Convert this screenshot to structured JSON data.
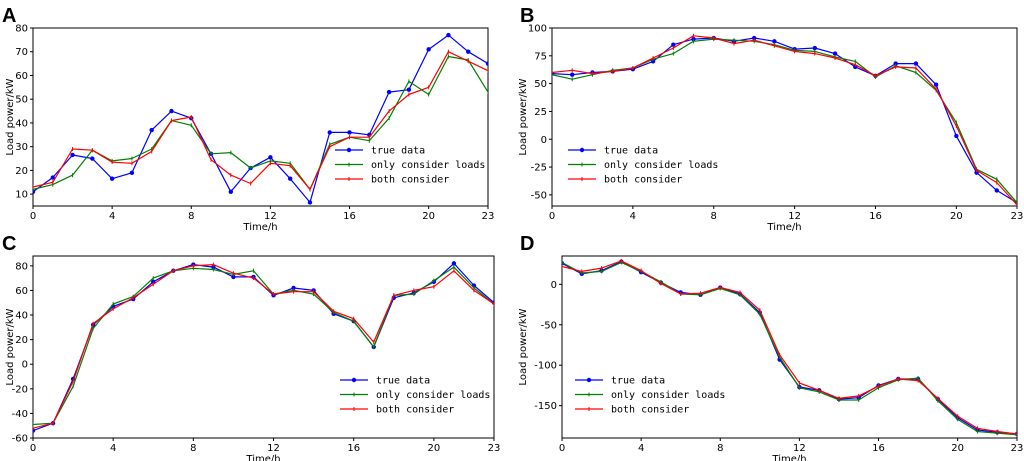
{
  "colors": {
    "true_data": "#0000ff",
    "only_loads": "#008000",
    "both": "#ff0000"
  },
  "chart_data": [
    {
      "panel": "A",
      "type": "line",
      "xlabel": "Time/h",
      "ylabel": "Load power/kW",
      "xlim": [
        0,
        23
      ],
      "ylim": [
        5,
        80
      ],
      "xticks": [
        0,
        4,
        8,
        12,
        16,
        20,
        23
      ],
      "yticks": [
        10,
        20,
        30,
        40,
        50,
        60,
        70,
        80
      ],
      "legend_position": "center-right",
      "x": [
        0,
        1,
        2,
        3,
        4,
        5,
        6,
        7,
        8,
        9,
        10,
        11,
        12,
        13,
        14,
        15,
        16,
        17,
        18,
        19,
        20,
        21,
        22,
        23
      ],
      "series": [
        {
          "name": "true data",
          "key": "true_data",
          "marker": "dot",
          "values": [
            11,
            17,
            26.5,
            25,
            16.5,
            19,
            37,
            45,
            42,
            27,
            11,
            21,
            25.5,
            16.5,
            6.5,
            36,
            36,
            35,
            53,
            54,
            71,
            77,
            70,
            65
          ]
        },
        {
          "name": "only consider loads",
          "key": "only_loads",
          "marker": "tick",
          "values": [
            12,
            14,
            18,
            28.5,
            24,
            25,
            29,
            41,
            39,
            27,
            27.5,
            21,
            24,
            23,
            12,
            31,
            34,
            32.5,
            42,
            57.5,
            52,
            68,
            66.5,
            53
          ]
        },
        {
          "name": "both consider",
          "key": "both",
          "marker": "tick",
          "values": [
            13,
            15,
            29,
            28.5,
            23.5,
            23,
            28,
            41,
            42.5,
            24.5,
            18,
            14.5,
            23,
            22,
            12,
            30,
            34,
            34,
            45,
            52,
            55,
            70,
            66,
            62
          ]
        }
      ]
    },
    {
      "panel": "B",
      "type": "line",
      "xlabel": "Time/h",
      "ylabel": "Load power/kW",
      "xlim": [
        0,
        23
      ],
      "ylim": [
        -60,
        100
      ],
      "xticks": [
        0,
        4,
        8,
        12,
        16,
        20,
        23
      ],
      "yticks": [
        -50,
        -25,
        0,
        25,
        50,
        75,
        100
      ],
      "legend_position": "lower-left",
      "x": [
        0,
        1,
        2,
        3,
        4,
        5,
        6,
        7,
        8,
        9,
        10,
        11,
        12,
        13,
        14,
        15,
        16,
        17,
        18,
        19,
        20,
        21,
        22,
        23
      ],
      "series": [
        {
          "name": "true data",
          "key": "true_data",
          "marker": "dot",
          "values": [
            59,
            58,
            60,
            61,
            63,
            70,
            85,
            90,
            91,
            88,
            91,
            88,
            81,
            82,
            77,
            65,
            57,
            68,
            68,
            49,
            3,
            -30,
            -46,
            -57
          ]
        },
        {
          "name": "only consider loads",
          "key": "only_loads",
          "marker": "tick",
          "values": [
            58,
            54,
            58,
            62,
            64,
            72,
            77,
            88,
            90,
            89,
            88,
            85,
            80,
            79,
            74,
            70,
            56,
            66,
            60,
            44,
            15,
            -27,
            -36,
            -57
          ]
        },
        {
          "name": "both consider",
          "key": "both",
          "marker": "tick",
          "values": [
            60,
            62,
            59,
            61,
            64,
            73,
            82,
            93,
            91,
            86,
            89,
            84,
            79,
            77,
            73,
            67,
            57,
            65,
            64,
            45,
            12,
            -28,
            -39,
            -59
          ]
        }
      ]
    },
    {
      "panel": "C",
      "type": "line",
      "xlabel": "Time/h",
      "ylabel": "Load power/kW",
      "xlim": [
        0,
        23
      ],
      "ylim": [
        -60,
        88
      ],
      "xticks": [
        0,
        4,
        8,
        12,
        16,
        20,
        23
      ],
      "yticks": [
        -60,
        -40,
        -20,
        0,
        20,
        40,
        60,
        80
      ],
      "legend_position": "lower-right",
      "x": [
        0,
        1,
        2,
        3,
        4,
        5,
        6,
        7,
        8,
        9,
        10,
        11,
        12,
        13,
        14,
        15,
        16,
        17,
        18,
        19,
        20,
        21,
        22,
        23
      ],
      "series": [
        {
          "name": "true data",
          "key": "true_data",
          "marker": "dot",
          "values": [
            -54,
            -48,
            -12,
            32,
            47,
            53,
            67,
            76,
            81,
            79,
            71,
            71,
            56,
            62,
            60,
            41,
            35,
            14,
            54,
            58,
            67,
            82,
            64,
            50
          ]
        },
        {
          "name": "only consider loads",
          "key": "only_loads",
          "marker": "tick",
          "values": [
            -49,
            -48,
            -18,
            29,
            49,
            55,
            70,
            76,
            78,
            77,
            73,
            76,
            57,
            60,
            57,
            42,
            35,
            14,
            56,
            57,
            68,
            79,
            62,
            49
          ]
        },
        {
          "name": "both consider",
          "key": "both",
          "marker": "tick",
          "values": [
            -52,
            -48,
            -14,
            33,
            45,
            54,
            65,
            76,
            80,
            81,
            74,
            70,
            57,
            59,
            59,
            43,
            37,
            18,
            56,
            60,
            63,
            76,
            60,
            49
          ]
        }
      ]
    },
    {
      "panel": "D",
      "type": "line",
      "xlabel": "Time/h",
      "ylabel": "Load power/kW",
      "xlim": [
        0,
        23
      ],
      "ylim": [
        -190,
        35
      ],
      "xticks": [
        0,
        4,
        8,
        12,
        16,
        20,
        23
      ],
      "yticks": [
        -150,
        -100,
        -50,
        0
      ],
      "legend_position": "lower-left",
      "x": [
        0,
        1,
        2,
        3,
        4,
        5,
        6,
        7,
        8,
        9,
        10,
        11,
        12,
        13,
        14,
        15,
        16,
        17,
        18,
        19,
        20,
        21,
        22,
        23
      ],
      "series": [
        {
          "name": "true data",
          "key": "true_data",
          "marker": "dot",
          "values": [
            26,
            13,
            17,
            28,
            15,
            2,
            -10,
            -13,
            -4,
            -12,
            -35,
            -93,
            -127,
            -131,
            -142,
            -140,
            -125,
            -117,
            -117,
            -142,
            -165,
            -180,
            -183,
            -185
          ]
        },
        {
          "name": "only consider loads",
          "key": "only_loads",
          "marker": "tick",
          "values": [
            27,
            14,
            16,
            27,
            16,
            3,
            -12,
            -13,
            -5,
            -13,
            -37,
            -90,
            -128,
            -133,
            -143,
            -143,
            -128,
            -118,
            -116,
            -144,
            -167,
            -182,
            -184,
            -186
          ]
        },
        {
          "name": "both consider",
          "key": "both",
          "marker": "tick",
          "values": [
            22,
            16,
            20,
            29,
            17,
            1,
            -12,
            -11,
            -4,
            -10,
            -32,
            -87,
            -122,
            -131,
            -141,
            -138,
            -126,
            -117,
            -119,
            -141,
            -163,
            -178,
            -182,
            -185
          ]
        }
      ]
    }
  ]
}
